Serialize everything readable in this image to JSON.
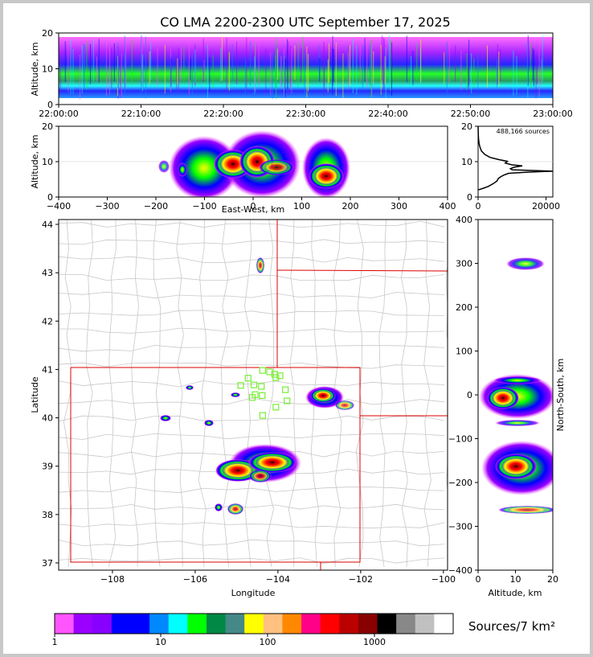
{
  "title": "CO LMA 2200-2300 UTC September 17, 2025",
  "colorbar": {
    "label": "Sources/7 km²",
    "tick_labels": [
      "1",
      "10",
      "100",
      "1000"
    ],
    "colors": [
      "#ff55ff",
      "#9900ff",
      "#8800ff",
      "#0000ff",
      "#0000ff",
      "#0088ff",
      "#00ffff",
      "#00ff00",
      "#008844",
      "#448888",
      "#ffff00",
      "#ffc080",
      "#ff8800",
      "#ff0088",
      "#ff0000",
      "#bb0000",
      "#880000",
      "#000000",
      "#888888",
      "#c0c0c0",
      "#ffffff"
    ]
  },
  "chart_data": [
    {
      "type": "heatmap",
      "name": "altitude-time",
      "xlabel": "",
      "ylabel": "Altitude, km",
      "x_tick_labels": [
        "22:00:00",
        "22:10:00",
        "22:20:00",
        "22:30:00",
        "22:40:00",
        "22:50:00",
        "23:00:00"
      ],
      "y_ticks": [
        0,
        10,
        20
      ],
      "ylim": [
        0,
        20
      ]
    },
    {
      "type": "heatmap",
      "name": "east-west-altitude",
      "xlabel": "East-West, km",
      "ylabel": "Altitude, km",
      "x_ticks": [
        -400,
        -300,
        -200,
        -100,
        0,
        100,
        200,
        300,
        400
      ],
      "y_ticks": [
        0,
        10,
        20
      ],
      "xlim": [
        -400,
        400
      ],
      "ylim": [
        0,
        20
      ]
    },
    {
      "type": "line",
      "name": "altitude-histogram",
      "annotation": "488,166 sources",
      "x_ticks": [
        0,
        20000
      ],
      "y_ticks": [
        0,
        10,
        20
      ],
      "ylim": [
        0,
        20
      ],
      "profile": [
        [
          0,
          2
        ],
        [
          1600,
          2.5
        ],
        [
          3000,
          3
        ],
        [
          4500,
          3.8
        ],
        [
          5500,
          4.5
        ],
        [
          6000,
          5.3
        ],
        [
          6800,
          5.8
        ],
        [
          7600,
          6.2
        ],
        [
          9000,
          6.7
        ],
        [
          15000,
          7.05
        ],
        [
          22000,
          7.3
        ],
        [
          16000,
          7.5
        ],
        [
          10000,
          7.7
        ],
        [
          9500,
          8.0
        ],
        [
          10500,
          8.4
        ],
        [
          13000,
          8.8
        ],
        [
          10000,
          9.1
        ],
        [
          8000,
          9.6
        ],
        [
          8600,
          10.1
        ],
        [
          6000,
          10.6
        ],
        [
          3500,
          11.2
        ],
        [
          2000,
          12
        ],
        [
          1000,
          13
        ],
        [
          600,
          14
        ],
        [
          300,
          15
        ],
        [
          120,
          16.5
        ],
        [
          40,
          18
        ],
        [
          0,
          20
        ]
      ]
    },
    {
      "type": "heatmap",
      "name": "plan-view",
      "xlabel": "Longitude",
      "ylabel": "Latitude",
      "x_tick_labels": [
        "−108",
        "−106",
        "−104",
        "−102",
        "−100"
      ],
      "y_ticks": [
        37,
        38,
        39,
        40,
        41,
        42,
        43,
        44
      ],
      "xlim": [
        -109.3,
        -99.9
      ],
      "ylim": [
        36.85,
        44.1
      ],
      "stations": [
        [
          -104.9,
          40.67
        ],
        [
          -104.72,
          40.82
        ],
        [
          -104.58,
          40.68
        ],
        [
          -104.37,
          40.98
        ],
        [
          -104.2,
          40.95
        ],
        [
          -104.05,
          40.83
        ],
        [
          -104.08,
          40.9
        ],
        [
          -103.95,
          40.87
        ],
        [
          -104.55,
          40.48
        ],
        [
          -104.4,
          40.65
        ],
        [
          -104.38,
          40.46
        ],
        [
          -103.82,
          40.58
        ],
        [
          -103.78,
          40.35
        ],
        [
          -104.05,
          40.22
        ],
        [
          -104.37,
          40.05
        ],
        [
          -104.62,
          40.42
        ]
      ]
    },
    {
      "type": "heatmap",
      "name": "north-south-altitude",
      "xlabel": "Altitude, km",
      "ylabel": "North-South, km",
      "x_ticks": [
        0,
        10,
        20
      ],
      "y_ticks": [
        400,
        300,
        200,
        100,
        0,
        -100,
        -200,
        -300,
        -400
      ],
      "xlim": [
        0,
        20
      ],
      "ylim": [
        -400,
        400
      ]
    }
  ]
}
